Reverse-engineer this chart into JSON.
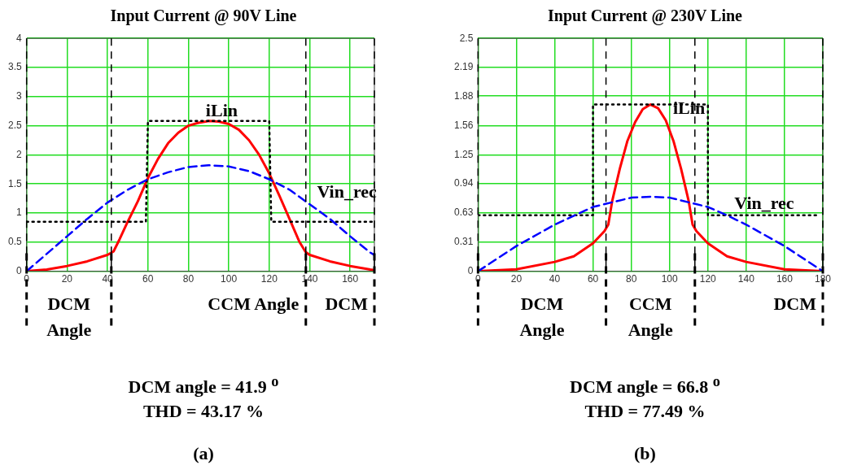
{
  "chart_data": [
    {
      "type": "line",
      "title": "Input Current @ 90V Line",
      "xlim": [
        0,
        172
      ],
      "xticks": [
        0,
        20,
        40,
        60,
        80,
        100,
        120,
        140,
        160
      ],
      "ylim": [
        0,
        4
      ],
      "yticks": [
        0,
        0.5,
        1,
        1.5,
        2,
        2.5,
        3,
        3.5,
        4
      ],
      "grid": true,
      "legend": false,
      "series": [
        {
          "color": "#0000ff",
          "line_style": "dashed",
          "x": [
            0,
            10,
            20,
            30,
            40,
            50,
            60,
            70,
            80,
            90,
            100,
            110,
            120,
            130,
            140,
            150,
            160,
            170,
            172
          ],
          "values": [
            0,
            0.3,
            0.6,
            0.9,
            1.18,
            1.4,
            1.58,
            1.7,
            1.79,
            1.82,
            1.8,
            1.72,
            1.58,
            1.4,
            1.15,
            0.9,
            0.6,
            0.32,
            0.28
          ]
        },
        {
          "color": "#000000",
          "line_style": "dotted",
          "x": [
            0,
            59,
            60,
            120,
            121,
            172
          ],
          "values": [
            0.85,
            0.85,
            2.58,
            2.58,
            0.85,
            0.85
          ]
        },
        {
          "color": "#ff0000",
          "line_style": "solid",
          "x": [
            0,
            10,
            20,
            30,
            40,
            43,
            46,
            50,
            55,
            60,
            65,
            70,
            75,
            80,
            85,
            90,
            95,
            100,
            105,
            110,
            115,
            120,
            125,
            130,
            135,
            138,
            140,
            150,
            160,
            170,
            172
          ],
          "values": [
            0,
            0.03,
            0.09,
            0.17,
            0.28,
            0.34,
            0.55,
            0.85,
            1.2,
            1.6,
            1.93,
            2.2,
            2.38,
            2.5,
            2.55,
            2.58,
            2.57,
            2.53,
            2.43,
            2.25,
            2,
            1.68,
            1.3,
            0.9,
            0.5,
            0.33,
            0.28,
            0.17,
            0.09,
            0.03,
            0.02
          ]
        }
      ],
      "ref_lines": [
        {
          "axis": "x",
          "value": 0,
          "line_style": "dashed"
        },
        {
          "axis": "x",
          "value": 41.9,
          "line_style": "dashed",
          "label": "DCM Angle"
        },
        {
          "axis": "x",
          "value": 138.1,
          "line_style": "dashed",
          "label": "CCM Angle"
        },
        {
          "axis": "x",
          "value": 172,
          "line_style": "dashed",
          "label": "DCM"
        }
      ],
      "annotations": [
        {
          "text": "iLin",
          "x": 85,
          "y": 2.55
        },
        {
          "text": "Vin_rec",
          "x": 140,
          "y": 1.15
        },
        "DCM angle = 41.9 $^{o}$",
        "THD = 43.17 %",
        "(a)"
      ]
    },
    {
      "type": "line",
      "title": "Input Current @ 230V Line",
      "xlim": [
        0,
        180
      ],
      "xticks": [
        0,
        20,
        40,
        60,
        80,
        100,
        120,
        140,
        160,
        180
      ],
      "ylim": [
        0,
        2.5
      ],
      "yticks": [
        0,
        0.31,
        0.63,
        0.94,
        1.25,
        1.56,
        1.88,
        2.19,
        2.5
      ],
      "grid": true,
      "legend": false,
      "series": [
        {
          "color": "#0000ff",
          "line_style": "dashed",
          "x": [
            0,
            20,
            40,
            60,
            80,
            90,
            100,
            120,
            130,
            140,
            160,
            180
          ],
          "values": [
            0,
            0.27,
            0.5,
            0.69,
            0.79,
            0.8,
            0.79,
            0.69,
            0.6,
            0.5,
            0.27,
            0
          ]
        },
        {
          "color": "#000000",
          "line_style": "dotted",
          "x": [
            0,
            60,
            60,
            120,
            120,
            177
          ],
          "values": [
            0.6,
            0.6,
            1.79,
            1.79,
            0.6,
            0.6
          ]
        },
        {
          "color": "#ff0000",
          "line_style": "solid",
          "x": [
            0,
            20,
            40,
            50,
            60,
            66,
            68,
            70,
            74,
            78,
            82,
            86,
            90,
            94,
            98,
            102,
            106,
            110,
            112,
            114,
            120,
            130,
            140,
            160,
            180
          ],
          "values": [
            0,
            0.02,
            0.1,
            0.16,
            0.3,
            0.43,
            0.5,
            0.75,
            1.1,
            1.4,
            1.6,
            1.74,
            1.79,
            1.75,
            1.62,
            1.4,
            1.1,
            0.75,
            0.5,
            0.43,
            0.3,
            0.16,
            0.1,
            0.02,
            0
          ]
        }
      ],
      "ref_lines": [
        {
          "axis": "x",
          "value": 0,
          "line_style": "dashed"
        },
        {
          "axis": "x",
          "value": 66.8,
          "line_style": "dashed",
          "label": "DCM Angle"
        },
        {
          "axis": "x",
          "value": 113.2,
          "line_style": "dashed",
          "label": "CCM Angle"
        },
        {
          "axis": "x",
          "value": 180,
          "line_style": "dashed",
          "label": "DCM"
        }
      ],
      "annotations": [
        {
          "text": "iLin",
          "x": 98,
          "y": 1.62
        },
        {
          "text": "Vin_rec",
          "x": 130,
          "y": 0.6
        },
        "DCM angle = 66.8 $^{o}$",
        "THD = 77.49 %",
        "(b)"
      ]
    }
  ]
}
